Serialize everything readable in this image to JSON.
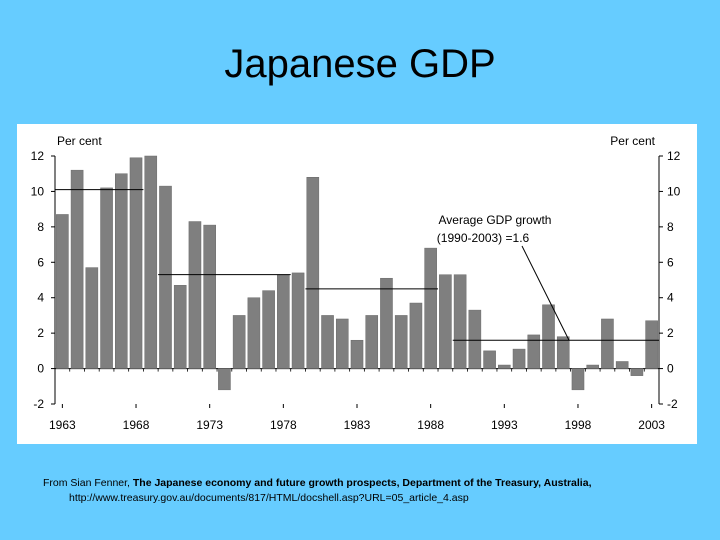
{
  "slide": {
    "title": "Japanese GDP"
  },
  "chart_data": {
    "type": "bar",
    "y_unit_left": "Per cent",
    "y_unit_right": "Per cent",
    "ylim": [
      -2,
      12
    ],
    "yticks": [
      -2,
      0,
      2,
      4,
      6,
      8,
      10,
      12
    ],
    "xlim": [
      1963,
      2003
    ],
    "x_tick_labels": [
      "1963",
      "1968",
      "1973",
      "1978",
      "1983",
      "1988",
      "1993",
      "1998",
      "2003"
    ],
    "grid": false,
    "years": [
      1963,
      1964,
      1965,
      1966,
      1967,
      1968,
      1969,
      1970,
      1971,
      1972,
      1973,
      1974,
      1975,
      1976,
      1977,
      1978,
      1979,
      1980,
      1981,
      1982,
      1983,
      1984,
      1985,
      1986,
      1987,
      1988,
      1989,
      1990,
      1991,
      1992,
      1993,
      1994,
      1995,
      1996,
      1997,
      1998,
      1999,
      2000,
      2001,
      2002,
      2003
    ],
    "values": [
      8.7,
      11.2,
      5.7,
      10.2,
      11.0,
      11.9,
      12.0,
      10.3,
      4.7,
      8.3,
      8.1,
      -1.2,
      3.0,
      4.0,
      4.4,
      5.3,
      5.4,
      10.8,
      3.0,
      2.8,
      1.6,
      3.0,
      5.1,
      3.0,
      3.7,
      6.8,
      5.3,
      5.3,
      3.3,
      1.0,
      0.2,
      1.1,
      1.9,
      3.6,
      1.8,
      -1.2,
      0.2,
      2.8,
      0.4,
      -0.4,
      2.7
    ],
    "bar_color": "#7f7f7f",
    "period_averages": [
      {
        "from": 1963,
        "to": 1968,
        "value": 10.1
      },
      {
        "from": 1970,
        "to": 1978,
        "value": 5.3
      },
      {
        "from": 1980,
        "to": 1988,
        "value": 4.5
      },
      {
        "from": 1990,
        "to": 2003,
        "value": 1.6
      }
    ],
    "annotation": {
      "line1": "Average GDP growth",
      "line2": "(1990-2003) =1.6"
    }
  },
  "source": {
    "prefix": "From Sian Fenner, ",
    "bold_text": "The Japanese economy and future growth prospects, Department of the Treasury, Australia,",
    "url": "http://www.treasury.gov.au/documents/817/HTML/docshell.asp?URL=05_article_4.asp"
  }
}
